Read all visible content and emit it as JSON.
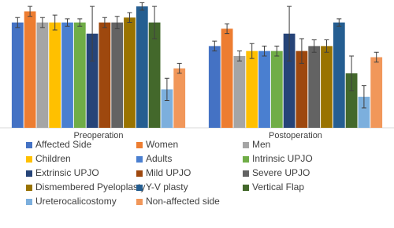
{
  "chart_data": {
    "type": "bar",
    "categories": [
      "Preoperation",
      "Postoperation"
    ],
    "ylim": [
      0,
      100
    ],
    "series": [
      {
        "name": "Affected Side",
        "color": "#4472c4",
        "values": [
          85,
          66
        ],
        "errors": [
          4,
          4
        ]
      },
      {
        "name": "Women",
        "color": "#ed7d31",
        "values": [
          94,
          80
        ],
        "errors": [
          4,
          4
        ]
      },
      {
        "name": "Men",
        "color": "#a5a5a5",
        "values": [
          85,
          58
        ],
        "errors": [
          4,
          4
        ]
      },
      {
        "name": "Children",
        "color": "#ffc000",
        "values": [
          85,
          62
        ],
        "errors": [
          6,
          6
        ]
      },
      {
        "name": "Adults",
        "color": "#4a7fd0",
        "values": [
          85,
          62
        ],
        "errors": [
          3,
          4
        ]
      },
      {
        "name": "Intrinsic UPJO",
        "color": "#70ad47",
        "values": [
          85,
          62
        ],
        "errors": [
          3,
          4
        ]
      },
      {
        "name": "Extrinsic UPJO",
        "color": "#264478",
        "values": [
          76,
          76
        ],
        "errors": [
          22,
          22
        ]
      },
      {
        "name": "Mild UPJO",
        "color": "#9e480e",
        "values": [
          85,
          62
        ],
        "errors": [
          4,
          10
        ]
      },
      {
        "name": "Severe UPJO",
        "color": "#636363",
        "values": [
          85,
          66
        ],
        "errors": [
          5,
          5
        ]
      },
      {
        "name": "Dismembered Pyeloplasty",
        "color": "#997300",
        "values": [
          89,
          66
        ],
        "errors": [
          4,
          5
        ]
      },
      {
        "name": "Y-V plasty",
        "color": "#255e91",
        "values": [
          98,
          85
        ],
        "errors": [
          3,
          3
        ]
      },
      {
        "name": "Vertical Flap",
        "color": "#43682b",
        "values": [
          85,
          44
        ],
        "errors": [
          13,
          14
        ]
      },
      {
        "name": "Ureterocalicostomy",
        "color": "#7cafdd",
        "values": [
          31,
          25
        ],
        "errors": [
          9,
          9
        ]
      },
      {
        "name": "Non-affected side",
        "color": "#f1975a",
        "values": [
          48,
          57
        ],
        "errors": [
          4,
          4
        ]
      }
    ]
  }
}
